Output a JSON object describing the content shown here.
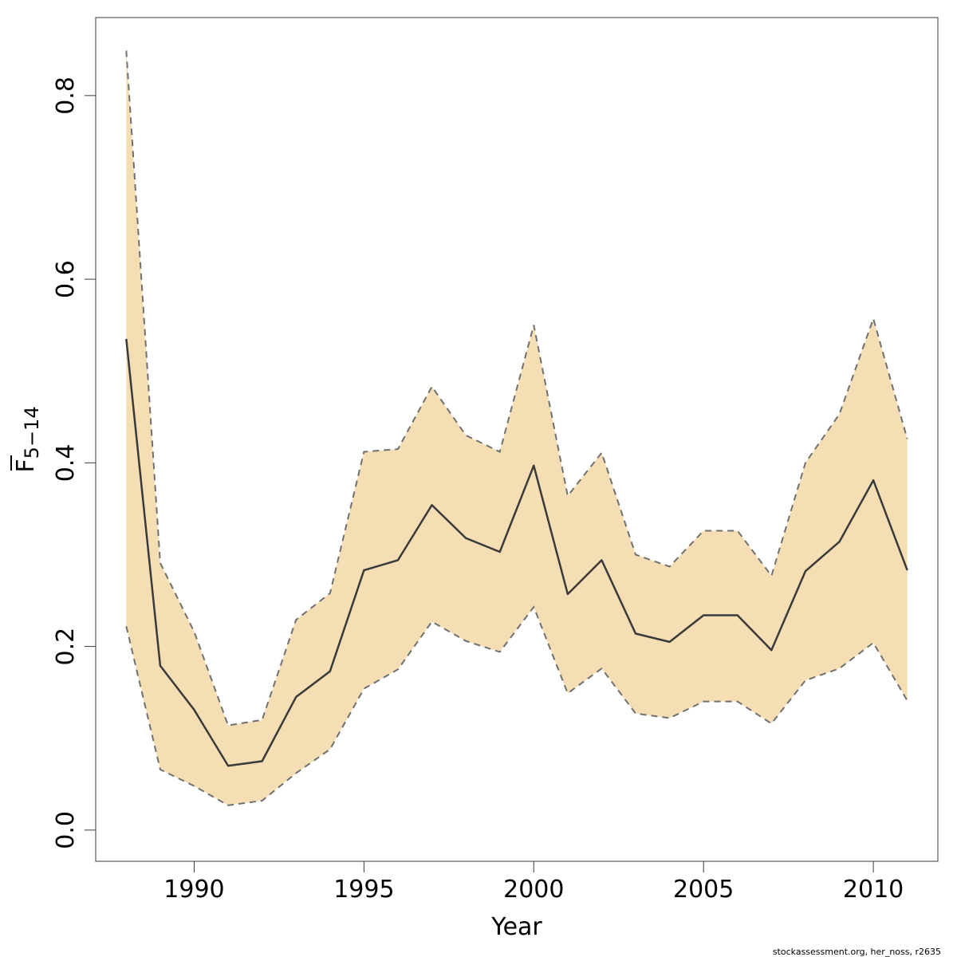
{
  "chart_data": {
    "type": "line",
    "xlabel": "Year",
    "ylabel": {
      "base": "F",
      "subscript": "5−14",
      "overline": true
    },
    "xlim": [
      1987.1,
      2011.9
    ],
    "ylim": [
      -0.034,
      0.885
    ],
    "xticks": [
      1990,
      1995,
      2000,
      2005,
      2010
    ],
    "yticks": [
      0.0,
      0.2,
      0.4,
      0.6,
      0.8
    ],
    "ytick_labels": [
      "0.0",
      "0.2",
      "0.4",
      "0.6",
      "0.8"
    ],
    "grid": false,
    "legend": "none",
    "x": [
      1988,
      1989,
      1990,
      1991,
      1992,
      1993,
      1994,
      1995,
      1996,
      1997,
      1998,
      1999,
      2000,
      2001,
      2002,
      2003,
      2004,
      2005,
      2006,
      2007,
      2008,
      2009,
      2010,
      2011
    ],
    "series": [
      {
        "role": "estimate",
        "values": [
          0.535,
          0.179,
          0.131,
          0.07,
          0.075,
          0.145,
          0.173,
          0.283,
          0.294,
          0.354,
          0.318,
          0.303,
          0.397,
          0.257,
          0.294,
          0.214,
          0.205,
          0.234,
          0.234,
          0.196,
          0.282,
          0.314,
          0.381,
          0.283
        ]
      },
      {
        "role": "upper",
        "values": [
          0.849,
          0.291,
          0.216,
          0.114,
          0.12,
          0.229,
          0.258,
          0.412,
          0.415,
          0.483,
          0.43,
          0.412,
          0.55,
          0.364,
          0.411,
          0.3,
          0.287,
          0.326,
          0.326,
          0.277,
          0.4,
          0.453,
          0.557,
          0.426
        ]
      },
      {
        "role": "lower",
        "values": [
          0.222,
          0.066,
          0.048,
          0.027,
          0.032,
          0.062,
          0.088,
          0.154,
          0.175,
          0.227,
          0.206,
          0.194,
          0.243,
          0.149,
          0.176,
          0.127,
          0.122,
          0.14,
          0.14,
          0.116,
          0.163,
          0.176,
          0.204,
          0.141
        ]
      }
    ],
    "credit": "stockassessment.org, her_noss, r2635"
  },
  "colors": {
    "band_fill": "#f5deb3",
    "band_edge": "#707070",
    "line": "#3a3a3a",
    "axis": "#3a3a3a"
  }
}
